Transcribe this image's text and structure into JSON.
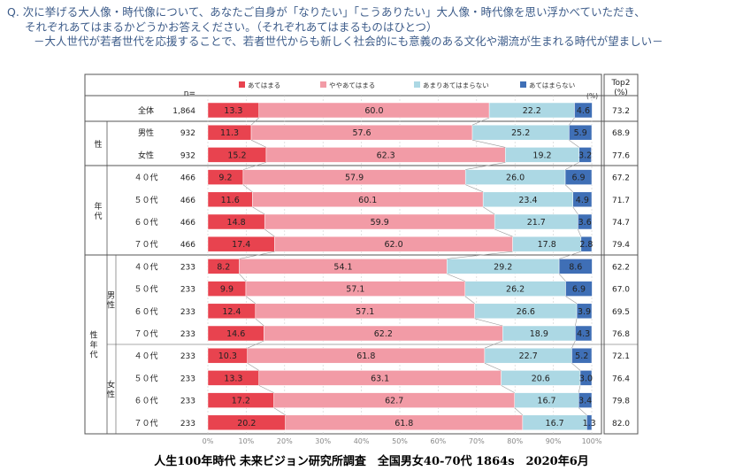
{
  "question": {
    "line1": "Q. 次に挙げる大人像・時代像について、あなたご自身が「なりたい」「こうありたい」大人像・時代像を思い浮かべていただき、",
    "line2": "それぞれあてはまるかどうかお答えください。（それぞれあてはまるものはひとつ）",
    "line3": "－大人世代が若者世代を応援することで、若者世代からも新しく社会的にも意義のある文化や潮流が生まれる時代が望ましい－"
  },
  "footer": "人生100年時代 未来ビジョン研究所調査　全国男女40-70代 1864s　2020年6月",
  "chart_data": {
    "type": "bar",
    "stacked": true,
    "orientation": "horizontal",
    "n_header": "n=",
    "unit_label": "(%)",
    "top2_header": [
      "Top2",
      "(%)"
    ],
    "series": [
      {
        "name": "あてはまる",
        "color": "#e8434f"
      },
      {
        "name": "ややあてはまる",
        "color": "#f29ba6"
      },
      {
        "name": "あまりあてはまらない",
        "color": "#acd8e4"
      },
      {
        "name": "あてはまらない",
        "color": "#3f6fb6"
      }
    ],
    "groups": [
      {
        "label": "性",
        "rows": [
          1,
          2
        ]
      },
      {
        "label": "年代",
        "rows": [
          3,
          4,
          5,
          6
        ]
      },
      {
        "label": "性年代",
        "rows": [
          7,
          8,
          9,
          10,
          11,
          12,
          13,
          14
        ]
      },
      {
        "label": "男性",
        "rows": [
          7,
          8,
          9,
          10
        ],
        "sub": true
      },
      {
        "label": "女性",
        "rows": [
          11,
          12,
          13,
          14
        ],
        "sub": true
      }
    ],
    "rows": [
      {
        "label": "全体",
        "n": "1,864",
        "values": [
          13.3,
          60.0,
          22.2,
          4.6
        ],
        "top2": "73.2"
      },
      {
        "label": "男性",
        "n": "932",
        "values": [
          11.3,
          57.6,
          25.2,
          5.9
        ],
        "top2": "68.9"
      },
      {
        "label": "女性",
        "n": "932",
        "values": [
          15.2,
          62.3,
          19.2,
          3.2
        ],
        "top2": "77.6"
      },
      {
        "label": "４０代",
        "n": "466",
        "values": [
          9.2,
          57.9,
          26.0,
          6.9
        ],
        "top2": "67.2"
      },
      {
        "label": "５０代",
        "n": "466",
        "values": [
          11.6,
          60.1,
          23.4,
          4.9
        ],
        "top2": "71.7"
      },
      {
        "label": "６０代",
        "n": "466",
        "values": [
          14.8,
          59.9,
          21.7,
          3.6
        ],
        "top2": "74.7"
      },
      {
        "label": "７０代",
        "n": "466",
        "values": [
          17.4,
          62.0,
          17.8,
          2.8
        ],
        "top2": "79.4"
      },
      {
        "label": "４０代",
        "n": "233",
        "values": [
          8.2,
          54.1,
          29.2,
          8.6
        ],
        "top2": "62.2"
      },
      {
        "label": "５０代",
        "n": "233",
        "values": [
          9.9,
          57.1,
          26.2,
          6.9
        ],
        "top2": "67.0"
      },
      {
        "label": "６０代",
        "n": "233",
        "values": [
          12.4,
          57.1,
          26.6,
          3.9
        ],
        "top2": "69.5"
      },
      {
        "label": "７０代",
        "n": "233",
        "values": [
          14.6,
          62.2,
          18.9,
          4.3
        ],
        "top2": "76.8"
      },
      {
        "label": "４０代",
        "n": "233",
        "values": [
          10.3,
          61.8,
          22.7,
          5.2
        ],
        "top2": "72.1"
      },
      {
        "label": "５０代",
        "n": "233",
        "values": [
          13.3,
          63.1,
          20.6,
          3.0
        ],
        "top2": "76.4"
      },
      {
        "label": "６０代",
        "n": "233",
        "values": [
          17.2,
          62.7,
          16.7,
          3.4
        ],
        "top2": "79.8"
      },
      {
        "label": "７０代",
        "n": "233",
        "values": [
          20.2,
          61.8,
          16.7,
          1.3
        ],
        "top2": "82.0"
      }
    ],
    "x_ticks": [
      "0%",
      "10%",
      "20%",
      "30%",
      "40%",
      "50%",
      "60%",
      "70%",
      "80%",
      "90%",
      "100%"
    ],
    "xlim": [
      0,
      100
    ]
  }
}
